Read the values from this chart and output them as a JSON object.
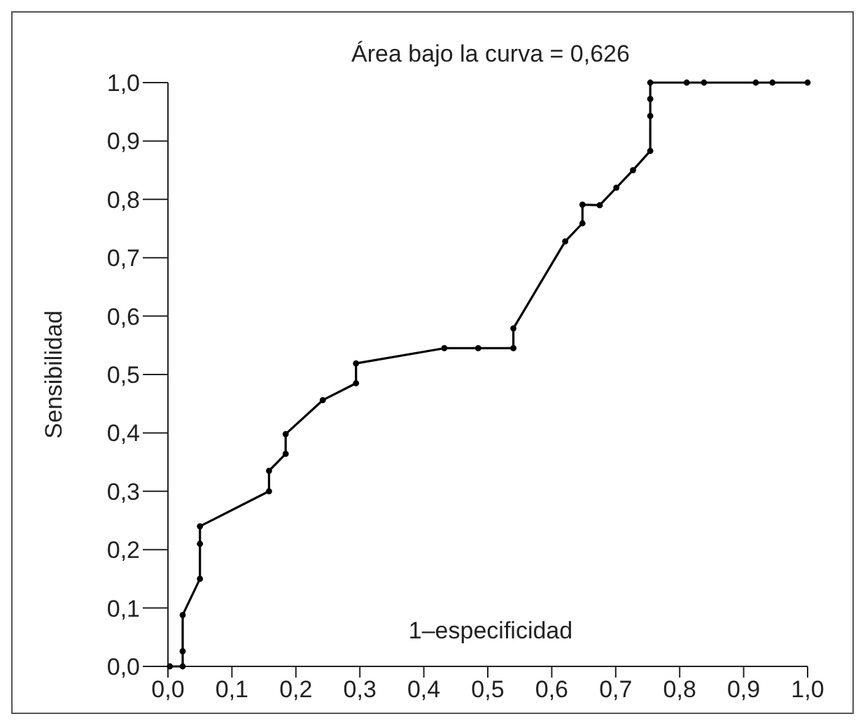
{
  "chart_data": {
    "type": "line",
    "title": "Área bajo la curva = 0,626",
    "xlabel": "1–especificidad",
    "ylabel": "Sensibilidad",
    "x": [
      0.003,
      0.023,
      0.023,
      0.023,
      0.05,
      0.05,
      0.05,
      0.158,
      0.158,
      0.184,
      0.184,
      0.242,
      0.294,
      0.294,
      0.432,
      0.485,
      0.54,
      0.54,
      0.621,
      0.648,
      0.648,
      0.675,
      0.701,
      0.727,
      0.754,
      0.754,
      0.754,
      0.754,
      0.811,
      0.838,
      0.919,
      0.945,
      1.0
    ],
    "series": [
      {
        "color": "#000000",
        "values": [
          0,
          0,
          0.026,
          0.088,
          0.15,
          0.21,
          0.24,
          0.3,
          0.335,
          0.364,
          0.398,
          0.456,
          0.485,
          0.519,
          0.545,
          0.545,
          0.545,
          0.579,
          0.728,
          0.759,
          0.791,
          0.79,
          0.82,
          0.85,
          0.883,
          0.943,
          0.972,
          1.0,
          1.0,
          1.0,
          1.0,
          1.0,
          1.0
        ]
      }
    ],
    "xlim": [
      0,
      1
    ],
    "ylim": [
      0,
      1
    ],
    "xticks": [
      {
        "value": 0,
        "label": "0,0"
      },
      {
        "value": 0.1,
        "label": "0,1"
      },
      {
        "value": 0.2,
        "label": "0,2"
      },
      {
        "value": 0.3,
        "label": "0,3"
      },
      {
        "value": 0.4,
        "label": "0,4"
      },
      {
        "value": 0.5,
        "label": "0,5"
      },
      {
        "value": 0.6,
        "label": "0,6"
      },
      {
        "value": 0.7,
        "label": "0,7"
      },
      {
        "value": 0.8,
        "label": "0,8"
      },
      {
        "value": 0.9,
        "label": "0,9"
      },
      {
        "value": 1,
        "label": "1,0"
      }
    ],
    "yticks": [
      {
        "value": 0,
        "label": "0,0"
      },
      {
        "value": 0.1,
        "label": "0,1"
      },
      {
        "value": 0.2,
        "label": "0,2"
      },
      {
        "value": 0.3,
        "label": "0,3"
      },
      {
        "value": 0.4,
        "label": "0,4"
      },
      {
        "value": 0.5,
        "label": "0,5"
      },
      {
        "value": 0.6,
        "label": "0,6"
      },
      {
        "value": 0.7,
        "label": "0,7"
      },
      {
        "value": 0.8,
        "label": "0,8"
      },
      {
        "value": 0.9,
        "label": "0,9"
      },
      {
        "value": 1,
        "label": "1,0"
      }
    ],
    "grid": false,
    "legend": false,
    "marker": "circle",
    "line_style": "solid"
  }
}
